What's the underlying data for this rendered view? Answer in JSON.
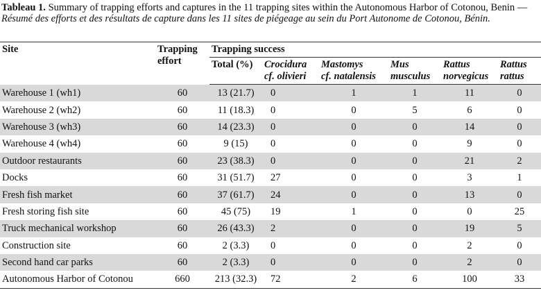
{
  "caption": {
    "label": "Tableau 1.",
    "text_en": "Summary of trapping efforts and captures in the 11 trapping sites within the Autonomous Harbor of Cotonou, Benin — ",
    "text_fr": "Résumé des efforts et des résultats de capture dans les 11 sites de piégeage au sein du Port Autonome de Cotonou, Bénin."
  },
  "table": {
    "header": {
      "site": "Site",
      "effort": [
        "Trapping",
        "effort"
      ],
      "success": "Trapping success",
      "columns": [
        [
          "Total (%)"
        ],
        [
          "Crocidura",
          "cf. olivieri"
        ],
        [
          "Mastomys",
          "cf. natalensis"
        ],
        [
          "Mus",
          "musculus"
        ],
        [
          "Rattus",
          "norvegicus"
        ],
        [
          "Rattus",
          "rattus"
        ]
      ]
    },
    "rows": [
      [
        "Warehouse 1 (wh1)",
        60,
        "13 (21.7)",
        0,
        1,
        1,
        11,
        0
      ],
      [
        "Warehouse 2 (wh2)",
        60,
        "11 (18.3)",
        0,
        0,
        5,
        6,
        0
      ],
      [
        "Warehouse 3 (wh3)",
        60,
        "14 (23.3)",
        0,
        0,
        0,
        14,
        0
      ],
      [
        "Warehouse 4 (wh4)",
        60,
        "9 (15)",
        0,
        0,
        0,
        9,
        0
      ],
      [
        "Outdoor restaurants",
        60,
        "23 (38.3)",
        0,
        0,
        0,
        21,
        2
      ],
      [
        "Docks",
        60,
        "31 (51.7)",
        27,
        0,
        0,
        3,
        1
      ],
      [
        "Fresh fish market",
        60,
        "37 (61.7)",
        24,
        0,
        0,
        13,
        0
      ],
      [
        "Fresh storing fish site",
        60,
        "45 (75)",
        19,
        1,
        0,
        0,
        25
      ],
      [
        "Truck mechanical workshop",
        60,
        "26 (43.3)",
        2,
        0,
        0,
        19,
        5
      ],
      [
        "Construction site",
        60,
        "2 (3.3)",
        0,
        0,
        0,
        2,
        0
      ],
      [
        "Second hand car parks",
        60,
        "2 (3.3)",
        0,
        0,
        0,
        2,
        0
      ],
      [
        "Autonomous Harbor of Cotonou",
        660,
        "213 (32.3)",
        72,
        2,
        6,
        100,
        33
      ]
    ]
  }
}
